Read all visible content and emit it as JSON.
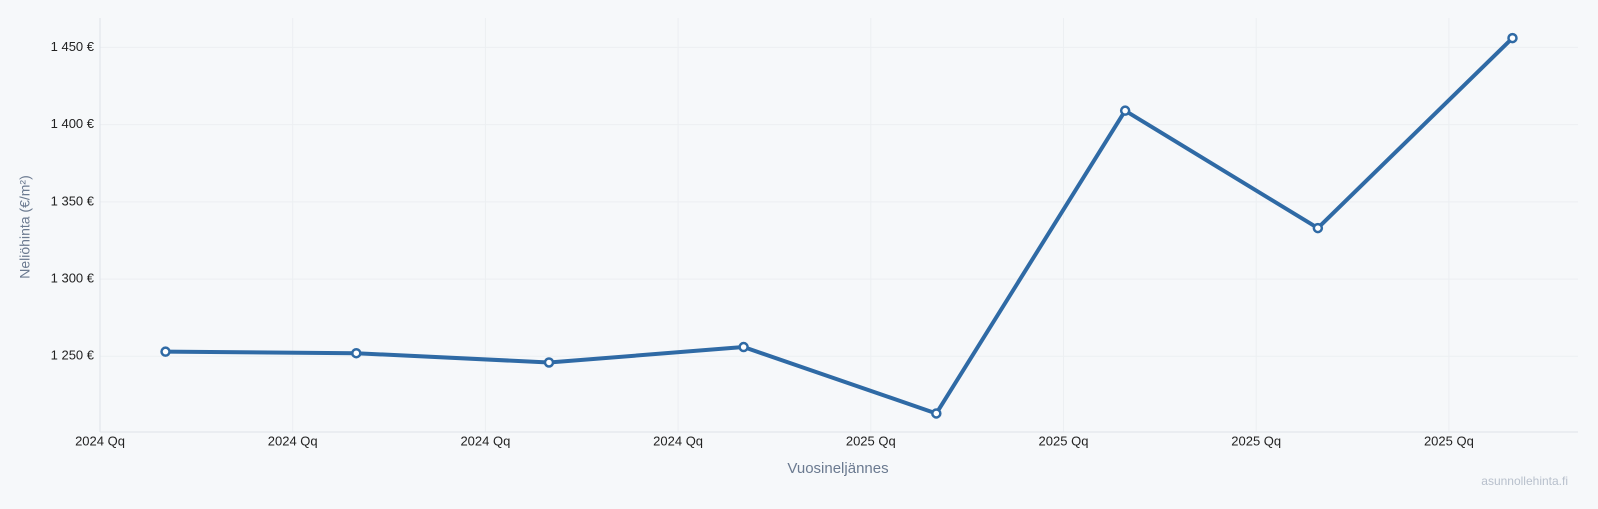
{
  "chart_data": {
    "type": "line",
    "x_label": "Vuosineljännes",
    "y_label": "Neliöhinta (€/m²)",
    "watermark": "asunnollehinta.fi",
    "x": [
      0.34,
      1.33,
      2.33,
      3.34,
      4.34,
      5.32,
      6.32,
      7.33
    ],
    "series": [
      {
        "name": "Neliöhinta",
        "color": "#2f6aa5",
        "values": [
          1253,
          1252,
          1246,
          1256,
          1213,
          1409,
          1333,
          1456
        ]
      }
    ],
    "xlim": [
      0,
      7.67
    ],
    "xticks": [
      {
        "value": 0,
        "label": "2024 Qq"
      },
      {
        "value": 1,
        "label": "2024 Qq"
      },
      {
        "value": 2,
        "label": "2024 Qq"
      },
      {
        "value": 3,
        "label": "2024 Qq"
      },
      {
        "value": 4,
        "label": "2025 Qq"
      },
      {
        "value": 5,
        "label": "2025 Qq"
      },
      {
        "value": 6,
        "label": "2025 Qq"
      },
      {
        "value": 7,
        "label": "2025 Qq"
      }
    ],
    "ylim": [
      1201,
      1469
    ],
    "yticks": [
      {
        "value": 1250,
        "label": "1 250 €"
      },
      {
        "value": 1300,
        "label": "1 300 €"
      },
      {
        "value": 1350,
        "label": "1 350 €"
      },
      {
        "value": 1400,
        "label": "1 400 €"
      },
      {
        "value": 1450,
        "label": "1 450 €"
      }
    ],
    "grid": true
  }
}
